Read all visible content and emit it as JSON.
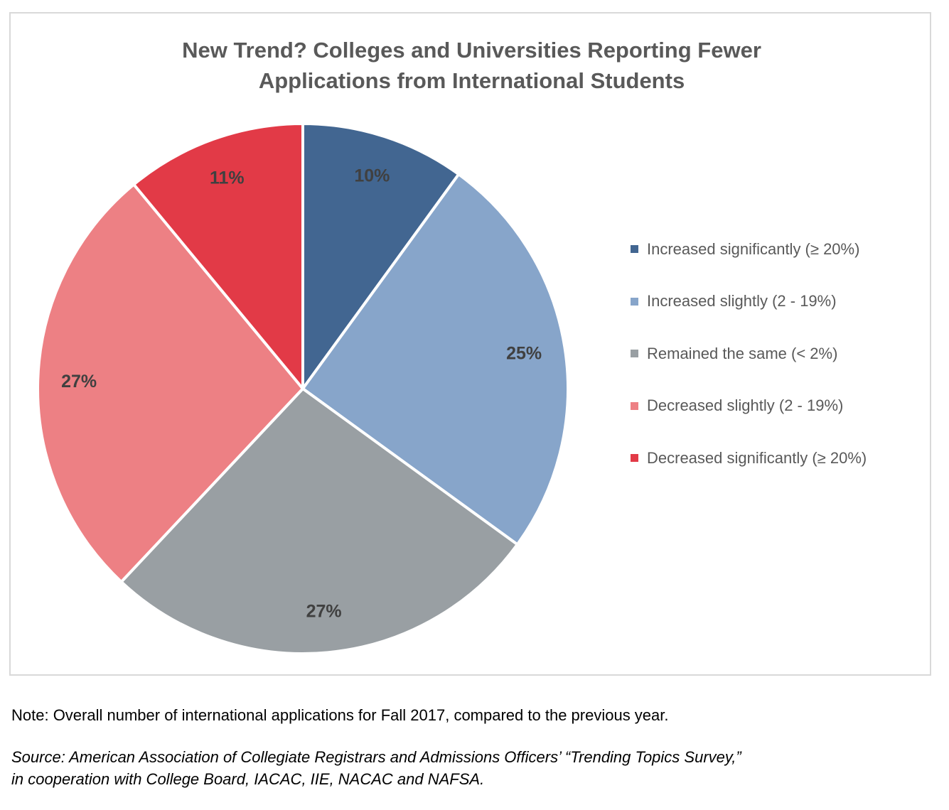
{
  "chart_data": {
    "type": "pie",
    "title_lines": [
      "New Trend? Colleges and Universities Reporting Fewer",
      "Applications from International Students"
    ],
    "categories": [
      "Increased significantly (≥ 20%)",
      "Increased slightly (2 - 19%)",
      "Remained the same (< 2%)",
      "Decreased slightly (2 - 19%)",
      "Decreased significantly (≥ 20%)"
    ],
    "values": [
      10,
      25,
      27,
      27,
      11
    ],
    "labels": [
      "10%",
      "25%",
      "27%",
      "27%",
      "11%"
    ],
    "colors": [
      "#426691",
      "#87a5ca",
      "#999fa3",
      "#ed8084",
      "#e23a47"
    ],
    "legend_position": "right",
    "start_angle": "top",
    "direction": "clockwise"
  },
  "footer": {
    "note": "Note: Overall number of international applications for Fall 2017, compared to the previous year.",
    "source_lines": [
      "Source: American Association of Collegiate Registrars and Admissions Officers’ “Trending Topics Survey,”",
      "in cooperation with College Board, IACAC, IIE, NACAC and NAFSA."
    ]
  }
}
